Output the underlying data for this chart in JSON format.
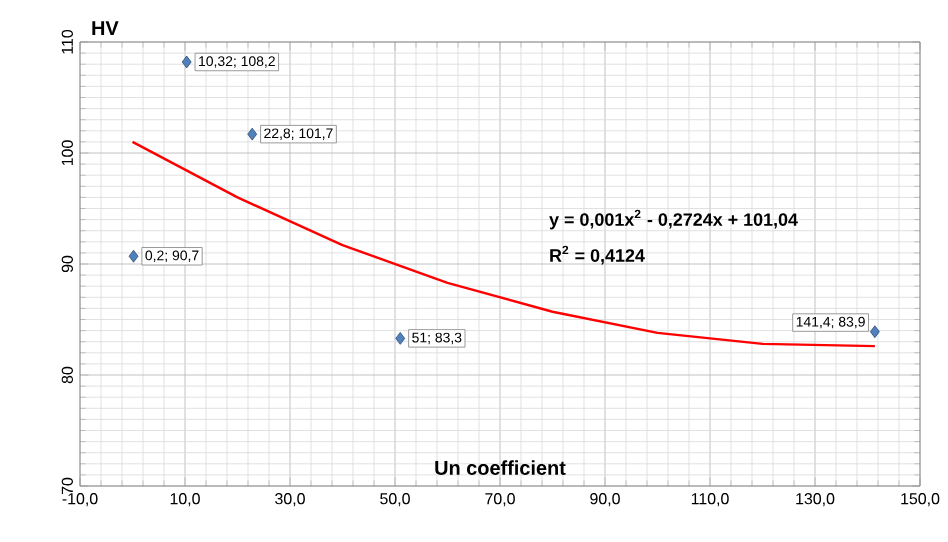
{
  "chart_data": {
    "type": "scatter",
    "xlabel": "Un coefficient",
    "ylabel": "HV",
    "xlim": [
      -10,
      150
    ],
    "ylim": [
      70,
      110
    ],
    "xticks": [
      {
        "value": -10,
        "label": "-10,0"
      },
      {
        "value": 10,
        "label": "10,0"
      },
      {
        "value": 30,
        "label": "30,0"
      },
      {
        "value": 50,
        "label": "50,0"
      },
      {
        "value": 70,
        "label": "70,0"
      },
      {
        "value": 90,
        "label": "90,0"
      },
      {
        "value": 110,
        "label": "110,0"
      },
      {
        "value": 130,
        "label": "130,0"
      },
      {
        "value": 150,
        "label": "150,0"
      }
    ],
    "yticks": [
      70,
      80,
      90,
      100,
      110
    ],
    "grid": true,
    "series": [
      {
        "marker": "diamond",
        "color": "#4f81bd",
        "x": [
          0.2,
          10.32,
          22.8,
          51,
          141.4
        ],
        "values": [
          90.7,
          108.2,
          101.7,
          83.3,
          83.9
        ],
        "value_labels": [
          "0,2; 90,7",
          "10,32; 108,2",
          "22,8; 101,7",
          "51; 83,3",
          "141,4; 83,9"
        ]
      },
      {
        "type": "line",
        "color": "#ff0000",
        "line_style": "solid",
        "x": [
          0,
          20,
          40,
          60,
          80,
          100,
          120,
          141.4
        ],
        "values": [
          101,
          96,
          91.7,
          88.3,
          85.7,
          83.8,
          82.8,
          82.6
        ]
      }
    ],
    "annotations": [
      "y = 0,001x$^{2}$ - 0,2724x + 101,04",
      "R$^{2}$ = 0,4124"
    ]
  }
}
